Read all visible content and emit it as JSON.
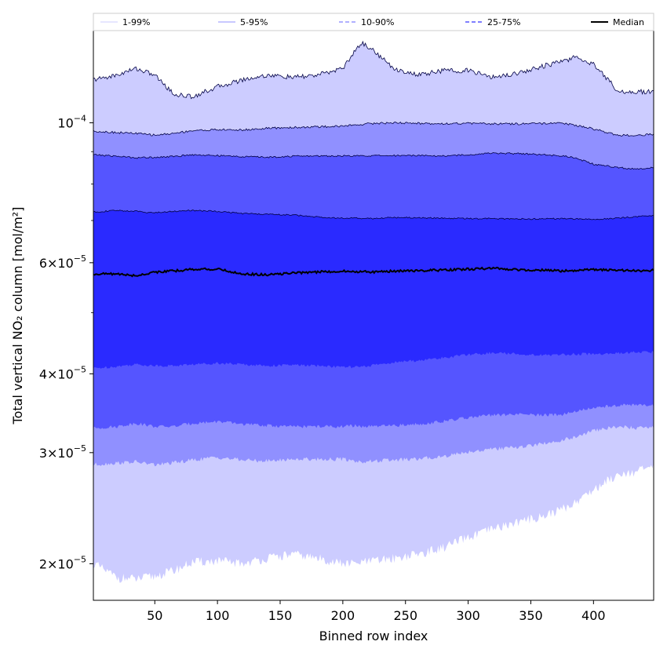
{
  "chart_data": {
    "type": "area",
    "xlabel": "Binned row index",
    "ylabel": "Total vertical NO₂ column [mol/m²]",
    "xlim": [
      1,
      448
    ],
    "ylim": [
      1.75e-05,
      0.00014
    ],
    "yscale": "log",
    "x_ticks": [
      50,
      100,
      150,
      200,
      250,
      300,
      350,
      400
    ],
    "y_ticks": [
      {
        "value": 2e-05,
        "mantissa": "2",
        "exponent": "−5"
      },
      {
        "value": 3e-05,
        "mantissa": "3",
        "exponent": "−5"
      },
      {
        "value": 4e-05,
        "mantissa": "4",
        "exponent": "−5"
      },
      {
        "value": 6e-05,
        "mantissa": "6",
        "exponent": "−5"
      },
      {
        "value": 0.0001,
        "mantissa": "",
        "exponent": "−4"
      }
    ],
    "y_minor_ticks": [
      5e-05,
      7e-05,
      8e-05,
      9e-05
    ],
    "legend": {
      "placement": "top",
      "entries": [
        "1-99%",
        "5-95%",
        "10-90%",
        "25-75%",
        "Median"
      ]
    },
    "colors": {
      "band_1_99": "#ccccff",
      "band_5_95": "#9090ff",
      "band_10_90": "#5555ff",
      "band_25_75": "#2a2aff",
      "edge": "#000044",
      "median": "#000000"
    },
    "x": [
      1,
      20,
      35,
      50,
      65,
      80,
      100,
      120,
      140,
      160,
      180,
      200,
      210,
      215,
      225,
      240,
      260,
      280,
      300,
      320,
      340,
      360,
      375,
      385,
      400,
      420,
      435,
      448
    ],
    "bands": [
      {
        "name": "1-99%",
        "color": "band_1_99",
        "lower": [
          2e-05,
          1.9e-05,
          1.89e-05,
          1.91e-05,
          1.95e-05,
          2.01e-05,
          2.02e-05,
          2e-05,
          2.04e-05,
          2.07e-05,
          2.04e-05,
          2e-05,
          2e-05,
          2.01e-05,
          2.02e-05,
          2.04e-05,
          2.07e-05,
          2.12e-05,
          2.2e-05,
          2.27e-05,
          2.33e-05,
          2.38e-05,
          2.44e-05,
          2.5e-05,
          2.62e-05,
          2.78e-05,
          2.8e-05,
          2.85e-05
        ],
        "upper": [
          0.000117,
          0.000119,
          0.000122,
          0.000119,
          0.000111,
          0.00011,
          0.000114,
          0.000117,
          0.000119,
          0.000118,
          0.000119,
          0.000122,
          0.00013,
          0.000134,
          0.00013,
          0.000122,
          0.000119,
          0.000121,
          0.000121,
          0.000118,
          0.00012,
          0.000123,
          0.000125,
          0.000127,
          0.000124,
          0.000112,
          0.000112,
          0.000112
        ]
      },
      {
        "name": "5-95%",
        "color": "band_5_95",
        "lower": [
          2.87e-05,
          2.89e-05,
          2.9e-05,
          2.87e-05,
          2.89e-05,
          2.92e-05,
          2.95e-05,
          2.92e-05,
          2.91e-05,
          2.93e-05,
          2.93e-05,
          2.93e-05,
          2.91e-05,
          2.9e-05,
          2.91e-05,
          2.92e-05,
          2.93e-05,
          2.96e-05,
          3.01e-05,
          3.04e-05,
          3.06e-05,
          3.1e-05,
          3.14e-05,
          3.17e-05,
          3.25e-05,
          3.3e-05,
          3.28e-05,
          3.3e-05
        ],
        "upper": [
          9.7e-05,
          9.65e-05,
          9.62e-05,
          9.56e-05,
          9.62e-05,
          9.72e-05,
          9.75e-05,
          9.74e-05,
          9.8e-05,
          9.83e-05,
          9.85e-05,
          9.88e-05,
          9.92e-05,
          9.95e-05,
          9.98e-05,
          0.0001,
          9.98e-05,
          9.97e-05,
          9.98e-05,
          9.96e-05,
          9.96e-05,
          9.97e-05,
          9.98e-05,
          9.92e-05,
          9.78e-05,
          9.55e-05,
          9.55e-05,
          9.6e-05
        ]
      },
      {
        "name": "10-90%",
        "color": "band_10_90",
        "lower": [
          3.28e-05,
          3.3e-05,
          3.34e-05,
          3.3e-05,
          3.3e-05,
          3.34e-05,
          3.36e-05,
          3.33e-05,
          3.31e-05,
          3.3e-05,
          3.3e-05,
          3.3e-05,
          3.31e-05,
          3.3e-05,
          3.3e-05,
          3.31e-05,
          3.33e-05,
          3.36e-05,
          3.41e-05,
          3.44e-05,
          3.45e-05,
          3.44e-05,
          3.45e-05,
          3.49e-05,
          3.53e-05,
          3.57e-05,
          3.57e-05,
          3.56e-05
        ]
      },
      {
        "name": "25-75%",
        "color": "band_25_75",
        "lower": [
          4.08e-05,
          4.11e-05,
          4.14e-05,
          4.12e-05,
          4.12e-05,
          4.14e-05,
          4.16e-05,
          4.14e-05,
          4.12e-05,
          4.13e-05,
          4.12e-05,
          4.1e-05,
          4.1e-05,
          4.1e-05,
          4.13e-05,
          4.17e-05,
          4.2e-05,
          4.24e-05,
          4.29e-05,
          4.32e-05,
          4.3e-05,
          4.28e-05,
          4.29e-05,
          4.3e-05,
          4.3e-05,
          4.31e-05,
          4.33e-05,
          4.33e-05
        ],
        "upper": [
          7.22e-05,
          7.26e-05,
          7.24e-05,
          7.2e-05,
          7.24e-05,
          7.26e-05,
          7.24e-05,
          7.18e-05,
          7.16e-05,
          7.14e-05,
          7.09e-05,
          7.06e-05,
          7.06e-05,
          7.05e-05,
          7.05e-05,
          7.08e-05,
          7.07e-05,
          7.06e-05,
          7.05e-05,
          7.05e-05,
          7.04e-05,
          7.04e-05,
          7.05e-05,
          7.04e-05,
          7.03e-05,
          7.06e-05,
          7.1e-05,
          7.12e-05
        ]
      }
    ],
    "p10_90_upper": [
      8.9e-05,
      8.85e-05,
      8.8e-05,
      8.82e-05,
      8.84e-05,
      8.9e-05,
      8.87e-05,
      8.84e-05,
      8.82e-05,
      8.85e-05,
      8.86e-05,
      8.86e-05,
      8.86e-05,
      8.86e-05,
      8.87e-05,
      8.87e-05,
      8.88e-05,
      8.86e-05,
      8.9e-05,
      8.95e-05,
      8.94e-05,
      8.9e-05,
      8.86e-05,
      8.8e-05,
      8.6e-05,
      8.49e-05,
      8.45e-05,
      8.5e-05
    ],
    "median": [
      5.76e-05,
      5.76e-05,
      5.72e-05,
      5.8e-05,
      5.82e-05,
      5.86e-05,
      5.86e-05,
      5.76e-05,
      5.74e-05,
      5.78e-05,
      5.8e-05,
      5.82e-05,
      5.8e-05,
      5.82e-05,
      5.8e-05,
      5.82e-05,
      5.83e-05,
      5.84e-05,
      5.86e-05,
      5.88e-05,
      5.85e-05,
      5.84e-05,
      5.82e-05,
      5.83e-05,
      5.85e-05,
      5.84e-05,
      5.82e-05,
      5.84e-05
    ]
  }
}
